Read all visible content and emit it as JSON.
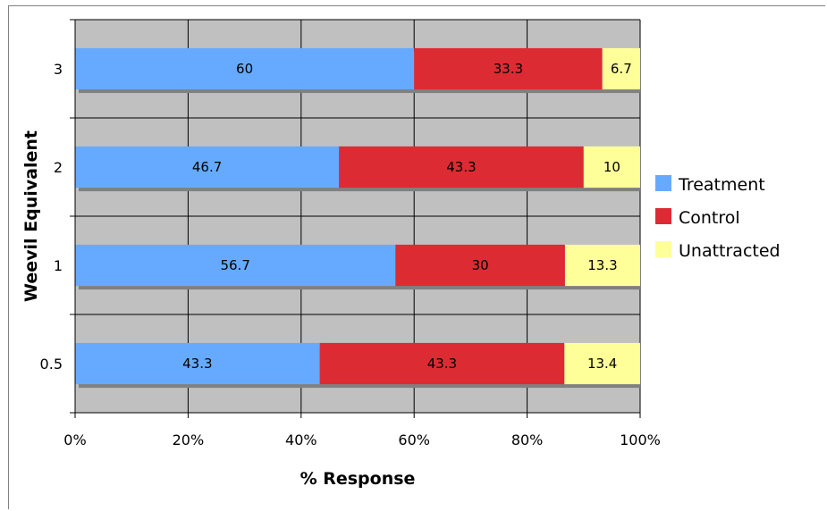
{
  "chart_data": {
    "type": "bar",
    "orientation": "horizontal",
    "stacking": "percent",
    "categories": [
      "0.5",
      "1",
      "2",
      "3"
    ],
    "series": [
      {
        "name": "Treatment",
        "values": [
          43.3,
          56.7,
          46.7,
          60
        ],
        "color": "#66aaff"
      },
      {
        "name": "Control",
        "values": [
          43.3,
          30,
          43.3,
          33.3
        ],
        "color": "#dd2b33"
      },
      {
        "name": "Unattracted",
        "values": [
          13.4,
          13.3,
          10,
          6.7
        ],
        "color": "#ffff99"
      }
    ],
    "data_labels": [
      [
        "43.3",
        "56.7",
        "46.7",
        "60"
      ],
      [
        "43.3",
        "30",
        "43.3",
        "33.3"
      ],
      [
        "13.4",
        "13.3",
        "10",
        "6.7"
      ]
    ],
    "xlabel": "% Response",
    "ylabel": "Weevil Equivalent",
    "xticks": [
      "0%",
      "20%",
      "40%",
      "60%",
      "80%",
      "100%"
    ],
    "xlim": [
      0,
      100
    ],
    "grid": true,
    "legend_position": "right",
    "plot_background": "#c0c0c0"
  }
}
